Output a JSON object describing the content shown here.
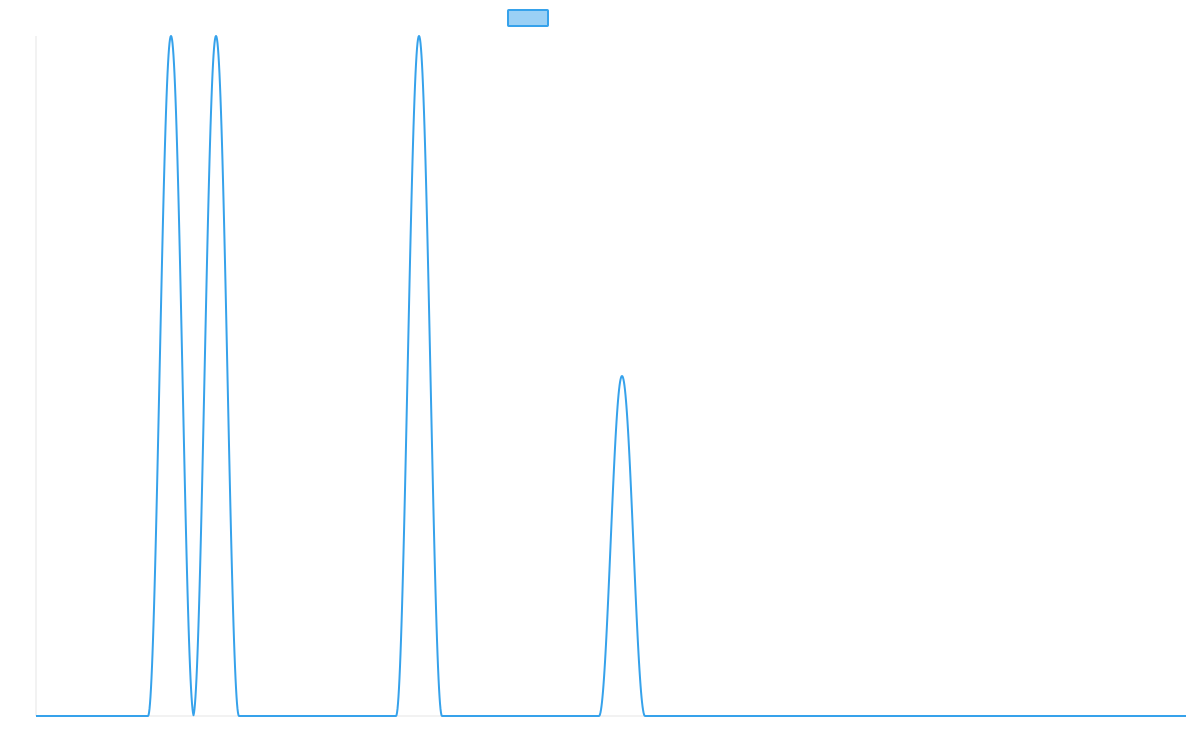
{
  "chart_data": {
    "type": "line",
    "title": "",
    "xlabel": "",
    "ylabel": "",
    "xlim": [
      0,
      1150
    ],
    "ylim": [
      0,
      1
    ],
    "grid": false,
    "legend": {
      "placement": "top-center",
      "entries": [
        {
          "name": "",
          "swatch_fill": "#9ad0f5",
          "swatch_stroke": "#36a2eb"
        }
      ]
    },
    "colors": {
      "line": "#36a2eb",
      "axis": "#e6e6e6"
    },
    "series": [
      {
        "name": "",
        "color": "#36a2eb",
        "peaks": [
          {
            "center": 135,
            "half_width": 23,
            "height": 1.0
          },
          {
            "center": 180,
            "half_width": 23,
            "height": 1.0
          },
          {
            "center": 383,
            "half_width": 23,
            "height": 1.0
          },
          {
            "center": 586,
            "half_width": 23,
            "height": 0.5
          }
        ]
      }
    ]
  }
}
